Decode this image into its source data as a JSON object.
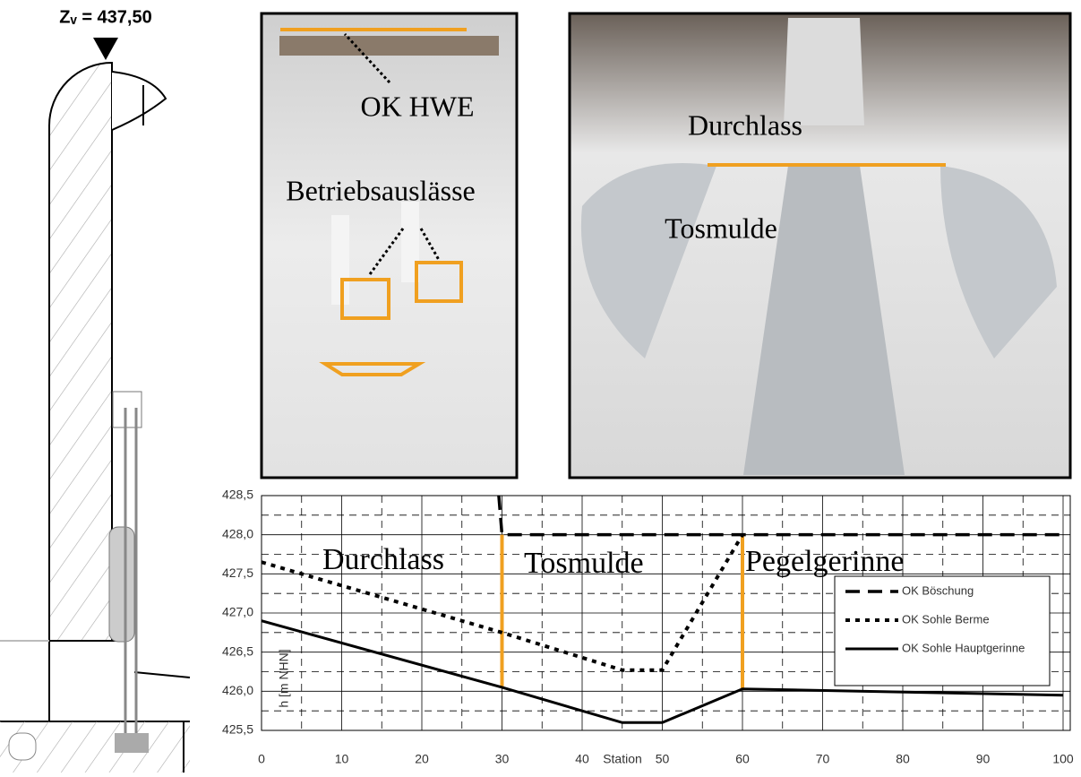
{
  "drawing": {
    "elevation_label": "Zᵥ = 437,50"
  },
  "photo_left": {
    "label_top": "OK HWE",
    "label_middle": "Betriebsauslässe"
  },
  "photo_right": {
    "label_top": "Durchlass",
    "label_middle": "Tosmulde"
  },
  "chart_data": {
    "type": "line",
    "xlabel": "Station",
    "ylabel": "h [m NHN]",
    "xlim": [
      0,
      100
    ],
    "xticks": [
      0,
      10,
      20,
      30,
      40,
      50,
      60,
      70,
      80,
      90,
      100
    ],
    "ylim": [
      425.5,
      428.5
    ],
    "yticks": [
      {
        "value": 425.5,
        "label": "425,5"
      },
      {
        "value": 426.0,
        "label": "426,0"
      },
      {
        "value": 426.5,
        "label": "426,5"
      },
      {
        "value": 427.0,
        "label": "427,0"
      },
      {
        "value": 427.5,
        "label": "427,5"
      },
      {
        "value": 428.0,
        "label": "428,0"
      },
      {
        "value": 428.5,
        "label": "428,5"
      }
    ],
    "grid": true,
    "legend": "right",
    "annotations": [
      "Durchlass",
      "Tosmulde",
      "Pegelgerinne"
    ],
    "section_lines": {
      "color": "#f0a020",
      "x": [
        30,
        60
      ],
      "bottom": [
        426.05,
        426.03
      ],
      "top": [
        428.0,
        428.0
      ]
    },
    "series": [
      {
        "name": "OK Böschung",
        "color": "#000000",
        "style": "dashed",
        "x": [
          29.6,
          30,
          100
        ],
        "values": [
          428.5,
          428.0,
          428.0
        ]
      },
      {
        "name": "OK Sohle Berme",
        "color": "#000000",
        "style": "dotted",
        "x": [
          0,
          30,
          45,
          50,
          60
        ],
        "values": [
          427.65,
          426.75,
          426.27,
          426.27,
          428.0
        ]
      },
      {
        "name": "OK Sohle Hauptgerinne",
        "color": "#000000",
        "style": "solid",
        "x": [
          0,
          30,
          45,
          50,
          60,
          100
        ],
        "values": [
          426.9,
          426.05,
          425.6,
          425.6,
          426.03,
          425.95
        ]
      }
    ]
  }
}
